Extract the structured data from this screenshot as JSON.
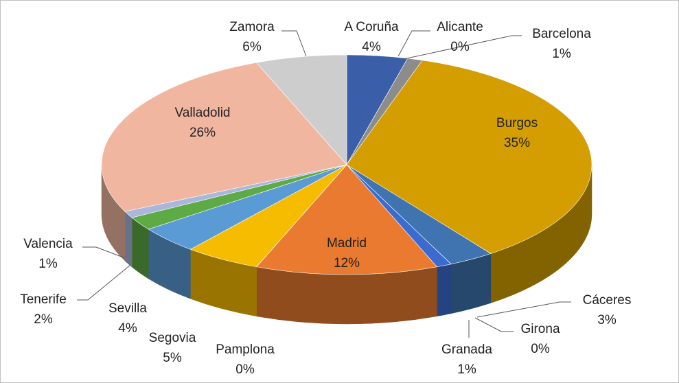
{
  "chart_data": {
    "type": "pie3d",
    "categories": [
      "A Coruña",
      "Alicante",
      "Barcelona",
      "Burgos",
      "Cáceres",
      "Girona",
      "Granada",
      "Madrid",
      "Pamplona",
      "Segovia",
      "Sevilla",
      "Tenerife",
      "Valencia",
      "Valladolid",
      "Zamora"
    ],
    "values": [
      4,
      0,
      1,
      35,
      3,
      0,
      1,
      12,
      0,
      5,
      4,
      2,
      1,
      26,
      6
    ],
    "value_labels": [
      "4%",
      "0%",
      "1%",
      "35%",
      "3%",
      "0%",
      "1%",
      "12%",
      "0%",
      "5%",
      "4%",
      "2%",
      "1%",
      "26%",
      "6%"
    ],
    "colors": [
      "#3a5fa8",
      "#a5a5a5",
      "#8c8c8c",
      "#d49e00",
      "#3f74b0",
      "#2f7a45",
      "#3b6bd0",
      "#ea7a30",
      "#a0a0a0",
      "#f6bd00",
      "#5b9bd5",
      "#5eaa44",
      "#a9b7dd",
      "#f1b6a0",
      "#cdcdcd"
    ]
  }
}
